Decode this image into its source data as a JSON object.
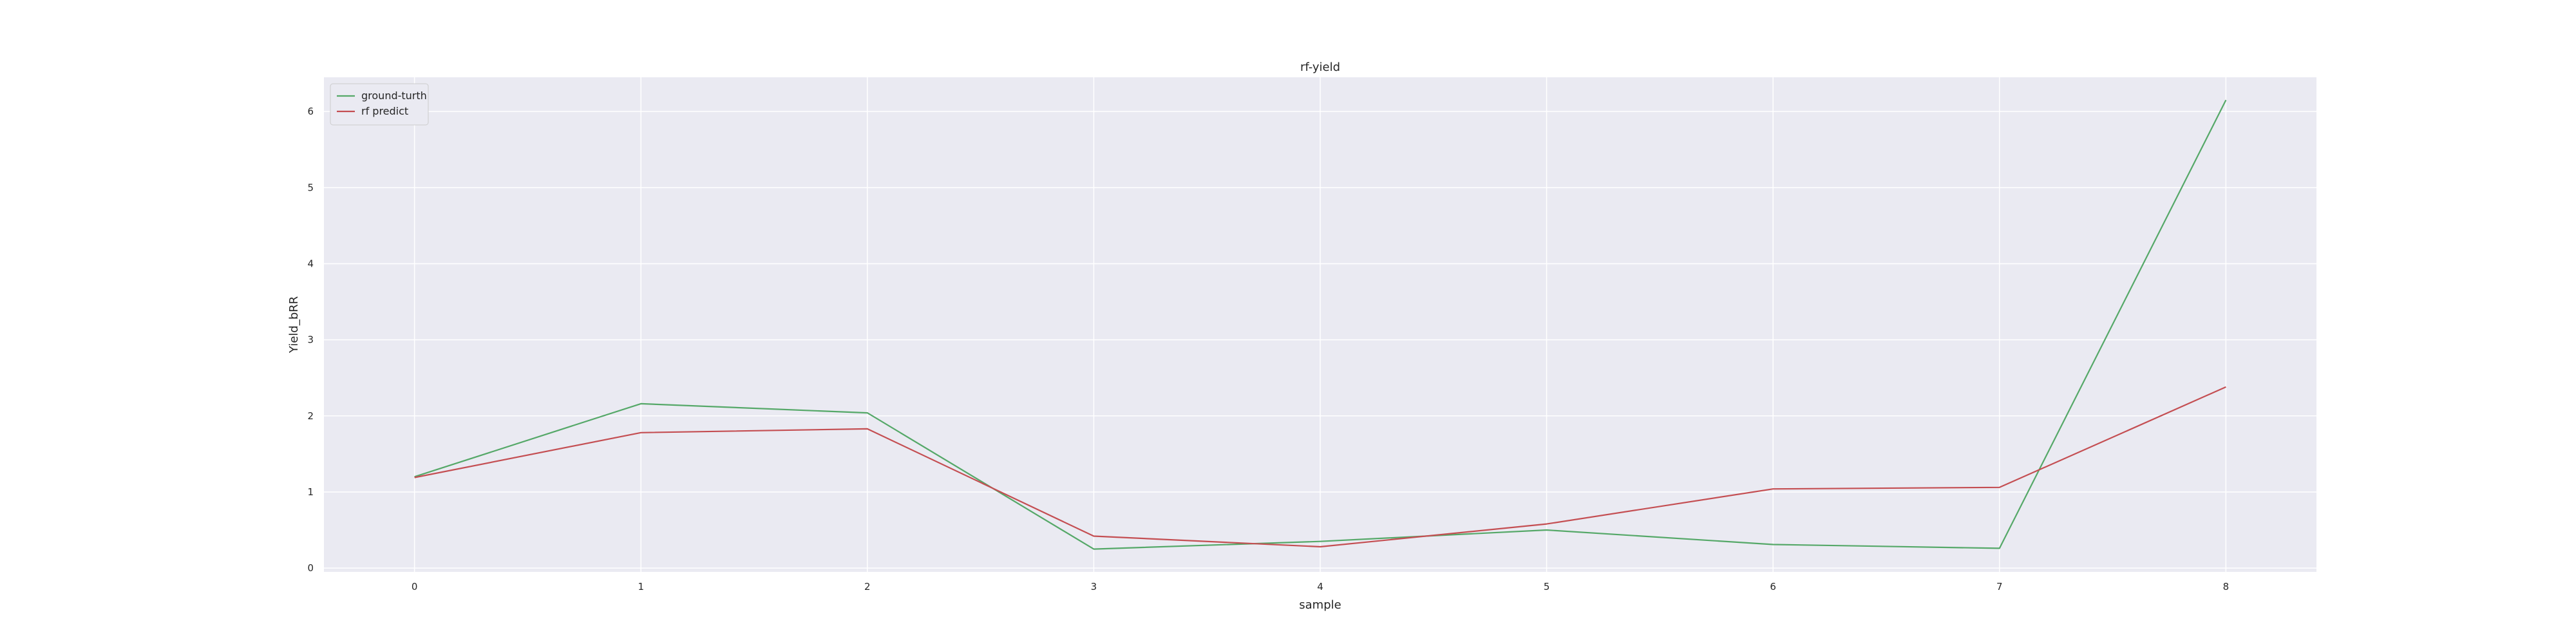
{
  "chart_data": {
    "type": "line",
    "title": "rf-yield",
    "xlabel": "sample",
    "ylabel": "Yield_bRR",
    "x": [
      0,
      1,
      2,
      3,
      4,
      5,
      6,
      7,
      8
    ],
    "xlim": [
      -0.4,
      8.4
    ],
    "ylim": [
      -0.05,
      6.45
    ],
    "xticks": [
      0,
      1,
      2,
      3,
      4,
      5,
      6,
      7,
      8
    ],
    "yticks": [
      0,
      1,
      2,
      3,
      4,
      5,
      6
    ],
    "grid": true,
    "legend_position": "top-left",
    "background": "#eaeaf2",
    "series": [
      {
        "name": "ground-turth",
        "color": "#55a868",
        "values": [
          1.2,
          2.16,
          2.04,
          0.25,
          0.35,
          0.5,
          0.31,
          0.26,
          6.15
        ]
      },
      {
        "name": "rf predict",
        "color": "#c44e52",
        "values": [
          1.19,
          1.78,
          1.83,
          0.42,
          0.28,
          0.58,
          1.04,
          1.06,
          2.38
        ]
      }
    ]
  }
}
